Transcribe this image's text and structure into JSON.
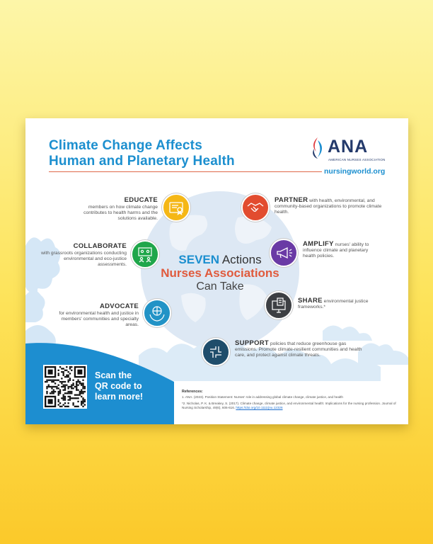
{
  "poster": {
    "title_line1": "Climate Change Affects",
    "title_line2": "Human and Planetary Health",
    "logo_text": "ANA",
    "logo_sub": "AMERICAN NURSES ASSOCIATION",
    "website": "nursingworld.org",
    "center": {
      "line1_bold": "SEVEN",
      "line1_rest": " Actions",
      "line2": "Nurses Associations",
      "line3": "Can Take"
    },
    "actions": {
      "educate": {
        "title": "EDUCATE",
        "text": "members on how climate change contributes to health harms and the solutions available.",
        "color": "#f5b716",
        "icon": "certificate-icon"
      },
      "collaborate": {
        "title": "COLLABORATE",
        "text": "with grassroots organizations conducting environmental and eco-justice assessments.",
        "color": "#1fa64a",
        "icon": "presentation-icon"
      },
      "advocate": {
        "title": "ADVOCATE",
        "text": "for environmental health and justice in members' communities and specialty areas.",
        "color": "#2293c6",
        "icon": "globe-in-hands-icon"
      },
      "partner": {
        "title": "PARTNER",
        "text": " with health, environmental, and community-based organizations to promote climate health.",
        "color": "#e24c2f",
        "icon": "handshake-icon"
      },
      "amplify": {
        "title": "AMPLIFY",
        "text": " nurses' ability to influence climate and planetary health policies.",
        "color": "#6a3aa5",
        "icon": "megaphone-icon"
      },
      "share": {
        "title": "SHARE",
        "text": " environmental justice frameworks.*",
        "color": "#3d3f43",
        "icon": "computer-document-icon"
      },
      "support": {
        "title": "SUPPORT",
        "text": " policies that reduce greenhouse gas emissions. Promote climate-resilient communities and health care, and protect against climate threats.",
        "color": "#1f4d6b",
        "icon": "joined-hands-icon"
      }
    },
    "qr_text": "Scan the QR code to learn more!",
    "qr_text_lines": [
      "Scan the",
      "QR code to",
      "learn more!"
    ],
    "refs_heading": "References:",
    "ref1": "1. ANA. (2023). Position Statement: Nurses' role in addressing global climate change, climate justice, and health",
    "ref2": "*2. Nicholas, P. K. & Breakey, S. (2017). Climate change, climate justice, and environmental health: Implications for the nursing profession. Journal of Nursing Scholarship, 49(6), 606-616.",
    "ref2_link": "https://doi.org/10.1111/jnu.12326",
    "colors": {
      "title": "#1c8fcf",
      "accent_red": "#e05a3c",
      "panel_blue": "#1c8fcf"
    }
  }
}
